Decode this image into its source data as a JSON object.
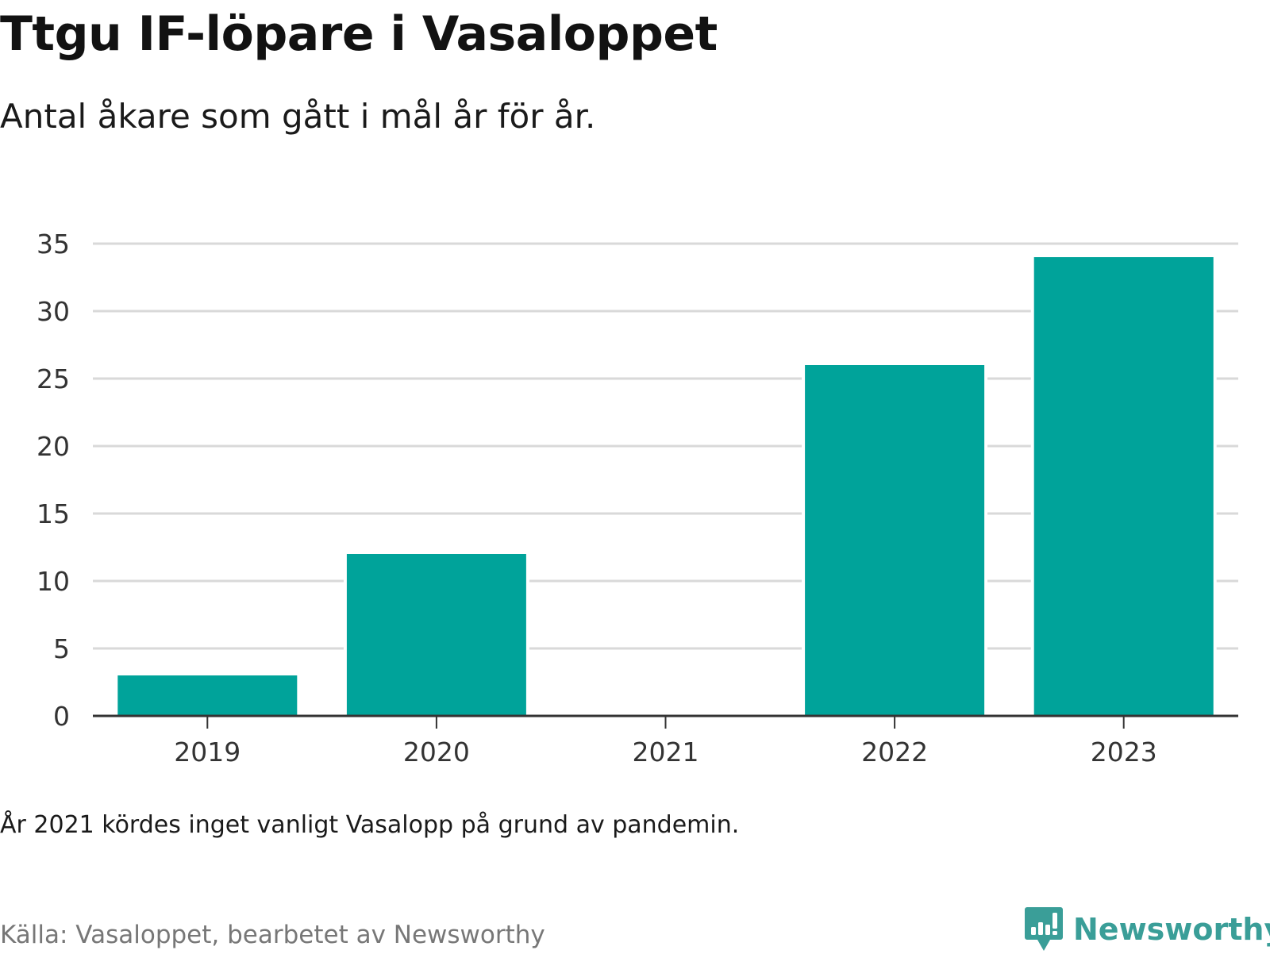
{
  "header": {
    "title": "Ttgu IF-löpare i Vasaloppet",
    "subtitle": "Antal åkare som gått i mål år för år."
  },
  "footer": {
    "note": "År 2021 kördes inget vanligt Vasalopp på grund av pandemin.",
    "source": "Källa: Vasaloppet, bearbetet av Newsworthy",
    "brand": "Newsworthy",
    "brand_icon": "newsworthy-logo-icon"
  },
  "colors": {
    "bar": "#00a39a",
    "grid": "#d9d9d9",
    "axis": "#333333",
    "brand": "#3a9e98"
  },
  "chart_data": {
    "type": "bar",
    "title": "Ttgu IF-löpare i Vasaloppet",
    "subtitle": "Antal åkare som gått i mål år för år.",
    "categories": [
      "2019",
      "2020",
      "2021",
      "2022",
      "2023"
    ],
    "values": [
      3,
      12,
      0,
      26,
      34
    ],
    "xlabel": "",
    "ylabel": "",
    "ylim": [
      0,
      35
    ],
    "yticks": [
      0,
      5,
      10,
      15,
      20,
      25,
      30,
      35
    ],
    "grid": true,
    "legend": "none"
  }
}
